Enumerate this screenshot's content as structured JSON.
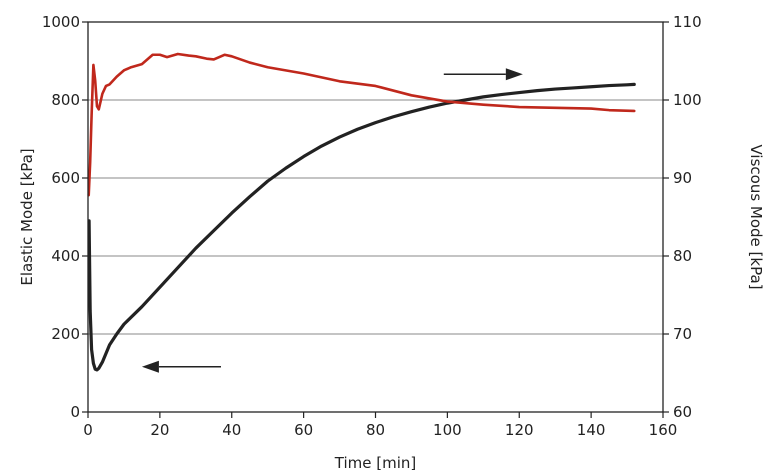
{
  "chart_data": {
    "type": "line",
    "xlabel": "Time [min]",
    "ylabel_left": "Elastic Mode [kPa]",
    "ylabel_right": "Viscous Mode [kPa]",
    "xlim": [
      0,
      160
    ],
    "ylim_left": [
      0,
      1000
    ],
    "ylim_right": [
      60,
      110
    ],
    "x_ticks": [
      "0",
      "20",
      "40",
      "60",
      "80",
      "100",
      "120",
      "140",
      "160"
    ],
    "y_left_ticks": [
      "0",
      "200",
      "400",
      "600",
      "800",
      "1000"
    ],
    "y_right_ticks": [
      "60",
      "70",
      "80",
      "90",
      "100",
      "110"
    ],
    "grid": "horizontal",
    "colors": {
      "elastic": "#222222",
      "viscous": "#c0281c"
    },
    "series": [
      {
        "axis": "left",
        "color": "#222222",
        "x": [
          0.3,
          0.6,
          1,
          1.5,
          2,
          2.5,
          3,
          4,
          5,
          6,
          8,
          10,
          15,
          20,
          25,
          30,
          35,
          40,
          45,
          50,
          55,
          60,
          65,
          70,
          75,
          80,
          85,
          90,
          95,
          100,
          105,
          110,
          115,
          120,
          125,
          130,
          135,
          140,
          145,
          150,
          152
        ],
        "y": [
          490,
          260,
          160,
          125,
          110,
          108,
          112,
          128,
          150,
          172,
          200,
          225,
          270,
          320,
          370,
          420,
          465,
          510,
          552,
          592,
          625,
          655,
          682,
          705,
          725,
          742,
          757,
          770,
          782,
          792,
          800,
          808,
          814,
          819,
          824,
          828,
          831,
          834,
          837,
          839,
          840
        ]
      },
      {
        "axis": "right",
        "color": "#c0281c",
        "x": [
          0.2,
          0.6,
          1,
          1.5,
          2,
          2.5,
          3,
          4,
          5,
          6,
          8,
          10,
          12,
          15,
          18,
          20,
          22,
          25,
          28,
          30,
          33,
          35,
          38,
          40,
          45,
          50,
          55,
          60,
          65,
          70,
          80,
          90,
          100,
          110,
          120,
          130,
          140,
          145,
          152
        ],
        "y": [
          87.8,
          92,
          98,
          104.5,
          102.5,
          99.2,
          98.8,
          100.8,
          101.8,
          102,
          103,
          103.8,
          104.2,
          104.6,
          105.8,
          105.8,
          105.5,
          105.9,
          105.7,
          105.6,
          105.3,
          105.2,
          105.8,
          105.6,
          104.8,
          104.2,
          103.8,
          103.4,
          102.9,
          102.4,
          101.8,
          100.6,
          99.8,
          99.4,
          99.1,
          99.0,
          98.9,
          98.7,
          98.6
        ]
      }
    ],
    "annotations": [
      {
        "type": "arrow",
        "direction": "right",
        "x_from": 99,
        "x_to": 121,
        "y_right": 103.3
      },
      {
        "type": "arrow",
        "direction": "left",
        "x_from": 37,
        "x_to": 15,
        "y_right": 65.8
      }
    ]
  }
}
